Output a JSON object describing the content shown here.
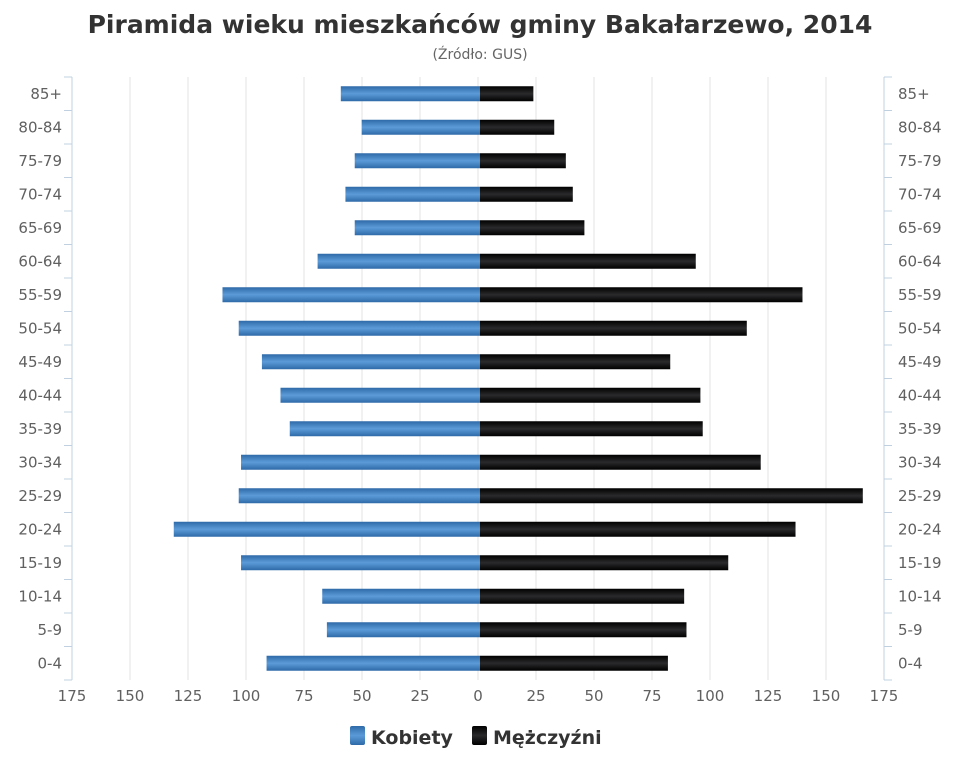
{
  "chart_data": {
    "type": "bar",
    "orientation": "horizontal",
    "layout": "population-pyramid",
    "title": "Piramida wieku mieszkańców gminy Bakałarzewo, 2014",
    "subtitle": "(Źródło: GUS)",
    "categories": [
      "85+",
      "80-84",
      "75-79",
      "70-74",
      "65-69",
      "60-64",
      "55-59",
      "50-54",
      "45-49",
      "40-44",
      "35-39",
      "30-34",
      "25-29",
      "20-24",
      "15-19",
      "10-14",
      "5-9",
      "0-4"
    ],
    "series": [
      {
        "name": "Kobiety",
        "side": "left",
        "color": "#3d7fc2",
        "values": [
          60,
          51,
          54,
          58,
          54,
          70,
          111,
          104,
          94,
          86,
          82,
          103,
          104,
          132,
          103,
          68,
          66,
          92
        ]
      },
      {
        "name": "Mężczyźni",
        "side": "right",
        "color": "#111111",
        "values": [
          23,
          32,
          37,
          40,
          45,
          93,
          139,
          115,
          82,
          95,
          96,
          121,
          165,
          136,
          107,
          88,
          89,
          81
        ]
      }
    ],
    "xlim": [
      -175,
      175
    ],
    "x_ticks": [
      "175",
      "150",
      "125",
      "100",
      "75",
      "50",
      "25",
      "0",
      "25",
      "50",
      "75",
      "100",
      "125",
      "150",
      "175"
    ],
    "grid": true,
    "legend": "bottom"
  }
}
